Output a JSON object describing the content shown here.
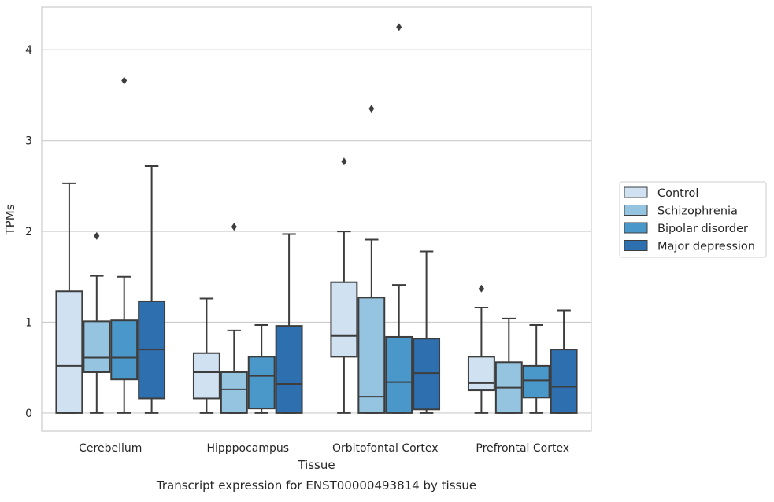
{
  "chart_data": {
    "type": "box",
    "title": "",
    "xlabel": "Tissue",
    "ylabel": "TPMs",
    "caption": "Transcript expression for ENST00000493814 by tissue",
    "ylim": [
      -0.2,
      4.47
    ],
    "yticks": [
      0,
      1,
      2,
      3,
      4
    ],
    "grid": "horizontal",
    "legend_position": "right",
    "categories": [
      "Cerebellum",
      "Hipppocampus",
      "Orbitofontal Cortex",
      "Prefrontal Cortex"
    ],
    "series": [
      {
        "name": "Control",
        "color": "#d0e1f2",
        "boxes": [
          {
            "whislo": 0.0,
            "q1": 0.0,
            "med": 0.52,
            "q3": 1.34,
            "whishi": 2.53,
            "fliers": []
          },
          {
            "whislo": 0.0,
            "q1": 0.16,
            "med": 0.45,
            "q3": 0.66,
            "whishi": 1.26,
            "fliers": []
          },
          {
            "whislo": 0.0,
            "q1": 0.62,
            "med": 0.85,
            "q3": 1.44,
            "whishi": 2.0,
            "fliers": [
              2.77
            ]
          },
          {
            "whislo": 0.0,
            "q1": 0.25,
            "med": 0.33,
            "q3": 0.62,
            "whishi": 1.16,
            "fliers": [
              1.37
            ]
          }
        ]
      },
      {
        "name": "Schizophrenia",
        "color": "#94c4df",
        "boxes": [
          {
            "whislo": 0.0,
            "q1": 0.45,
            "med": 0.61,
            "q3": 1.01,
            "whishi": 1.51,
            "fliers": [
              1.95
            ]
          },
          {
            "whislo": 0.0,
            "q1": 0.0,
            "med": 0.26,
            "q3": 0.45,
            "whishi": 0.91,
            "fliers": [
              2.05
            ]
          },
          {
            "whislo": 0.0,
            "q1": 0.0,
            "med": 0.18,
            "q3": 1.27,
            "whishi": 1.91,
            "fliers": [
              3.35
            ]
          },
          {
            "whislo": 0.0,
            "q1": 0.0,
            "med": 0.28,
            "q3": 0.56,
            "whishi": 1.04,
            "fliers": []
          }
        ]
      },
      {
        "name": "Bipolar disorder",
        "color": "#4a98c9",
        "boxes": [
          {
            "whislo": 0.0,
            "q1": 0.37,
            "med": 0.61,
            "q3": 1.02,
            "whishi": 1.5,
            "fliers": [
              3.66
            ]
          },
          {
            "whislo": 0.0,
            "q1": 0.05,
            "med": 0.41,
            "q3": 0.62,
            "whishi": 0.97,
            "fliers": []
          },
          {
            "whislo": 0.0,
            "q1": 0.0,
            "med": 0.34,
            "q3": 0.84,
            "whishi": 1.41,
            "fliers": [
              4.25
            ]
          },
          {
            "whislo": 0.0,
            "q1": 0.17,
            "med": 0.36,
            "q3": 0.52,
            "whishi": 0.97,
            "fliers": []
          }
        ]
      },
      {
        "name": "Major depression",
        "color": "#2e6fb0",
        "boxes": [
          {
            "whislo": 0.0,
            "q1": 0.16,
            "med": 0.7,
            "q3": 1.23,
            "whishi": 2.72,
            "fliers": []
          },
          {
            "whislo": 0.0,
            "q1": 0.0,
            "med": 0.32,
            "q3": 0.96,
            "whishi": 1.97,
            "fliers": []
          },
          {
            "whislo": 0.0,
            "q1": 0.04,
            "med": 0.44,
            "q3": 0.82,
            "whishi": 1.78,
            "fliers": []
          },
          {
            "whislo": 0.0,
            "q1": 0.0,
            "med": 0.29,
            "q3": 0.7,
            "whishi": 1.13,
            "fliers": []
          }
        ]
      }
    ]
  }
}
